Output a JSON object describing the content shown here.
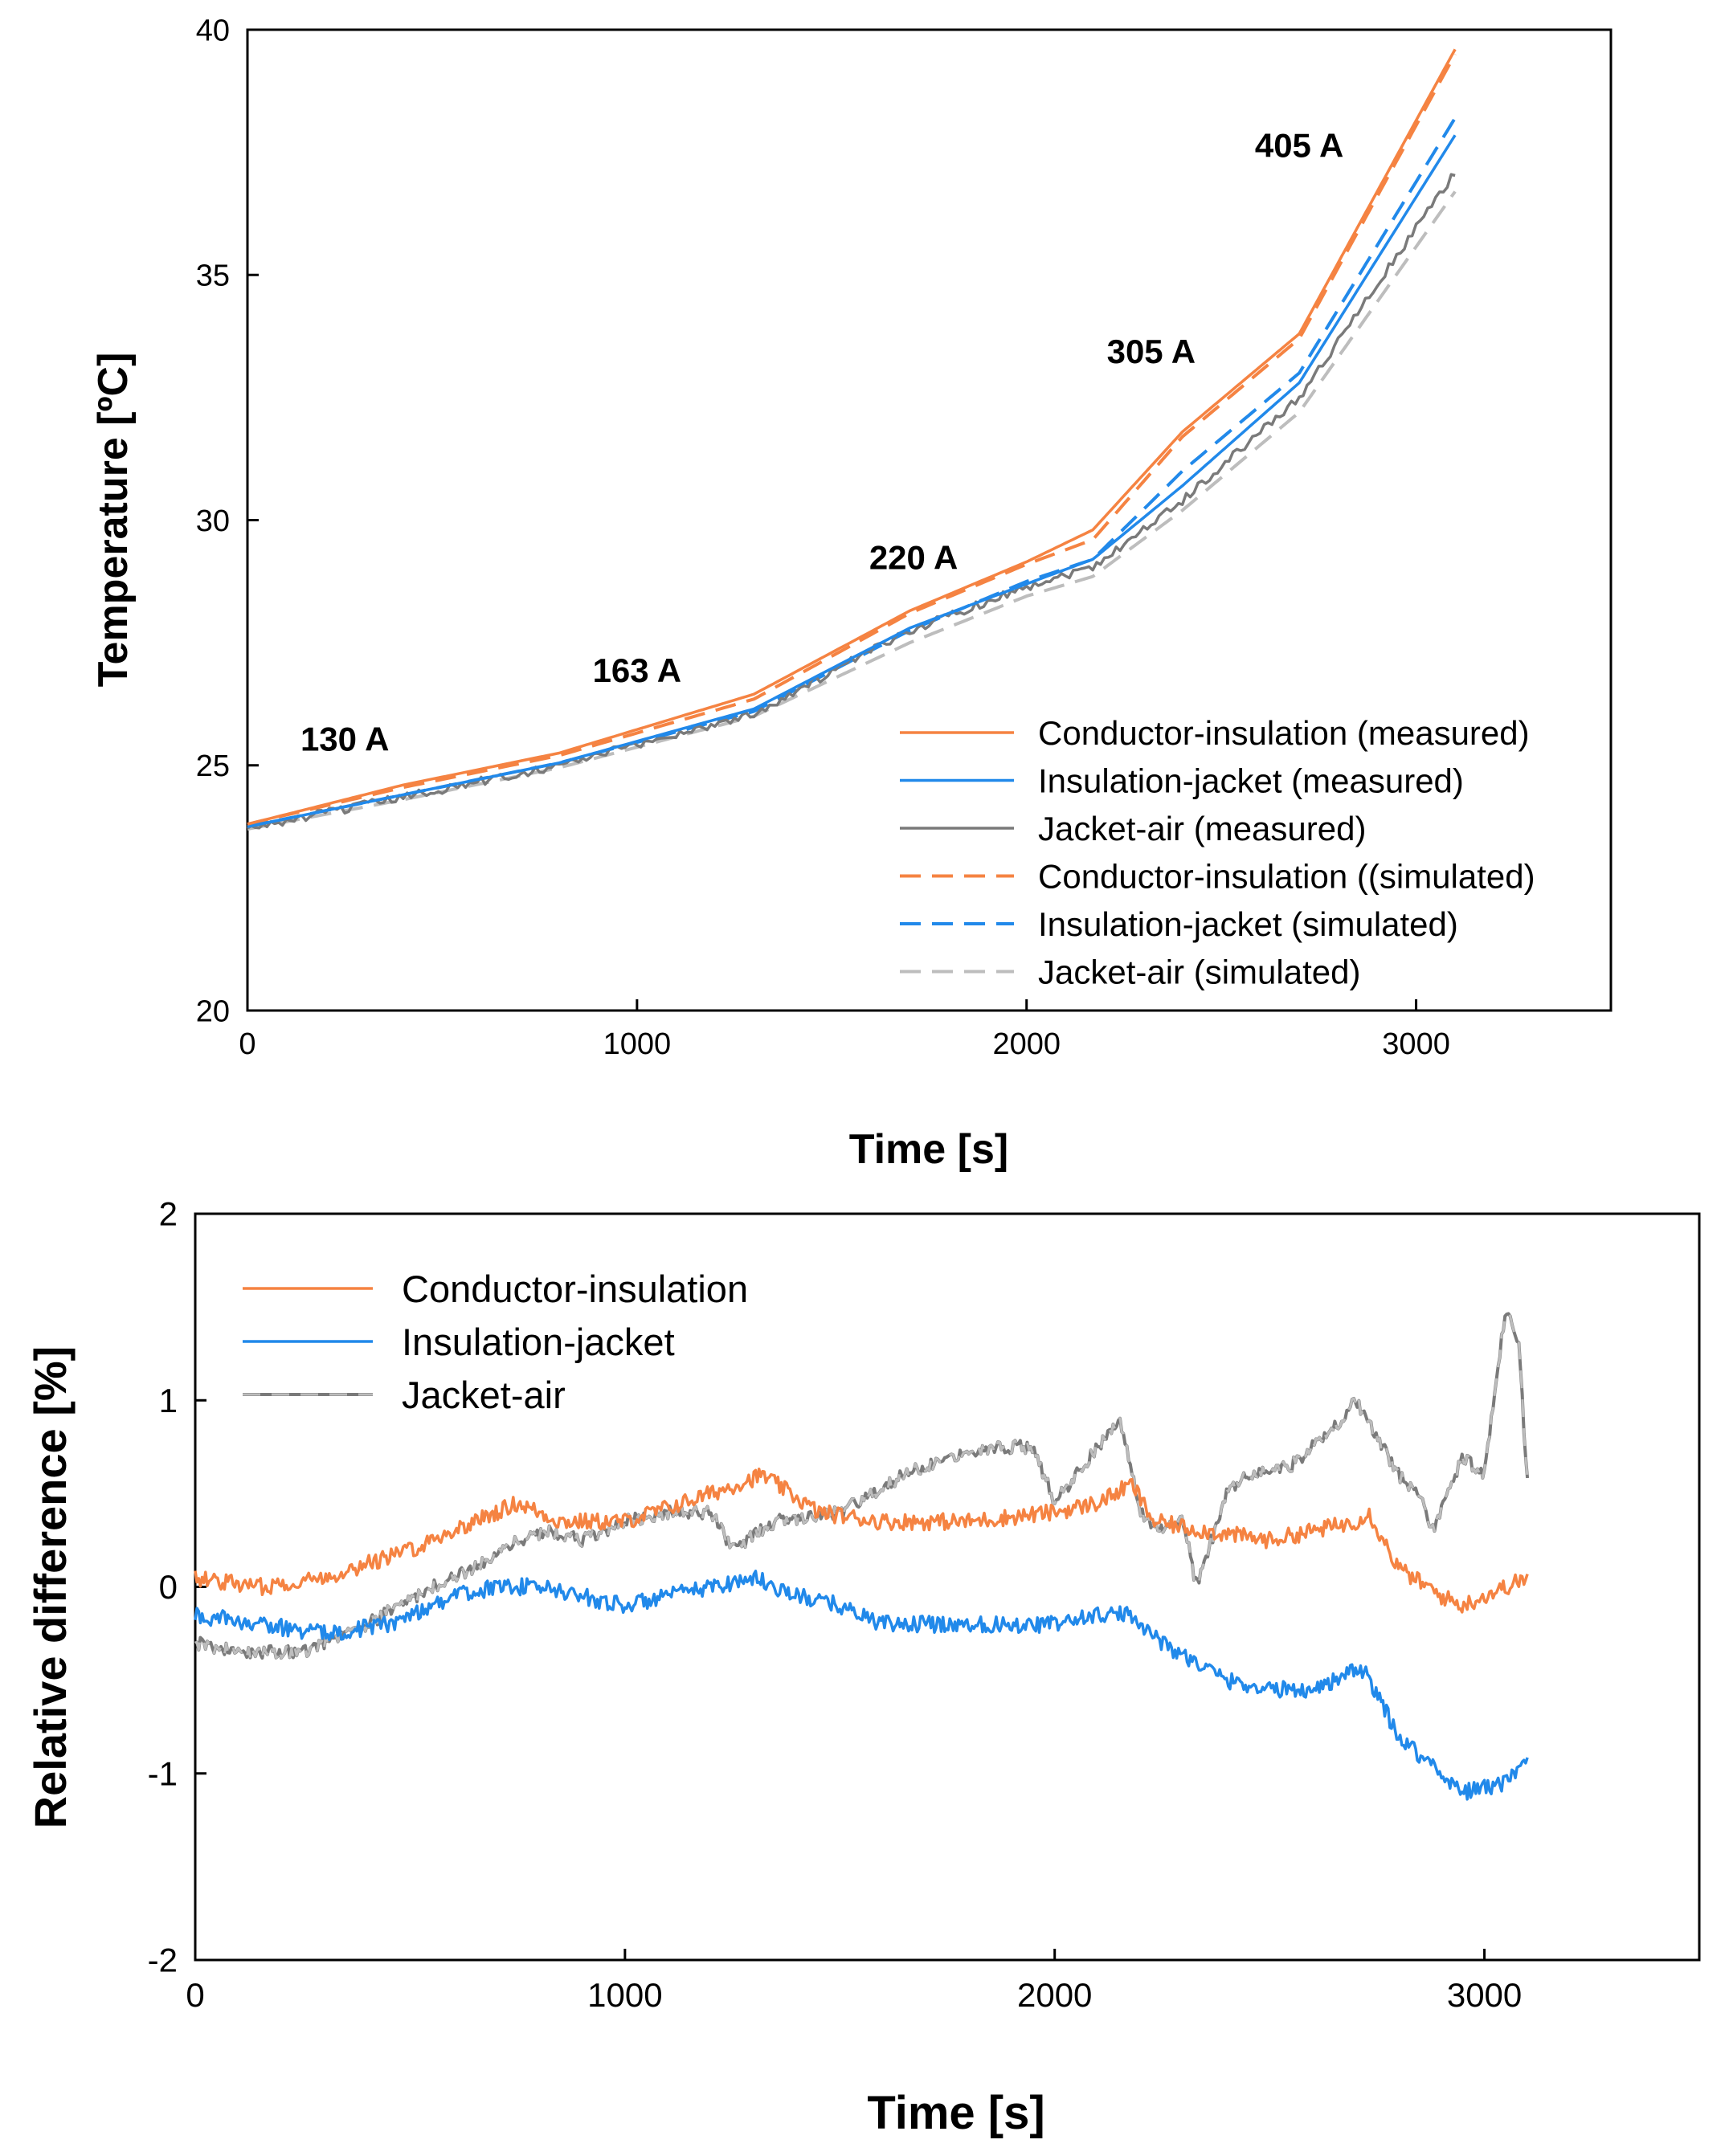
{
  "colors": {
    "orange": "#F58342",
    "blue": "#2189EA",
    "gray_measured": "#7A7A7A",
    "gray_simulated": "#BDBDBD"
  },
  "chart_data": [
    {
      "type": "line",
      "xlabel": "Time [s]",
      "ylabel": "Temperature [ºC]",
      "xlim": [
        0,
        3500
      ],
      "ylim": [
        20,
        40
      ],
      "xticks": [
        "0",
        "1000",
        "2000",
        "3000"
      ],
      "yticks": [
        "20",
        "25",
        "30",
        "35",
        "40"
      ],
      "legend_position": "bottom-right",
      "annotations": [
        {
          "text": "130 A",
          "x": 250,
          "y": 25.3
        },
        {
          "text": "163 A",
          "x": 1000,
          "y": 26.7
        },
        {
          "text": "220 A",
          "x": 1710,
          "y": 29.0
        },
        {
          "text": "305 A",
          "x": 2320,
          "y": 33.2
        },
        {
          "text": "405 A",
          "x": 2700,
          "y": 37.4
        }
      ],
      "series": [
        {
          "name": "Conductor-insulation (measured)",
          "style": "solid",
          "color": "orange",
          "x": [
            0,
            400,
            800,
            1300,
            1700,
            2000,
            2170,
            2400,
            2700,
            3100
          ],
          "y": [
            23.8,
            24.6,
            25.25,
            26.45,
            28.15,
            29.15,
            29.8,
            31.8,
            33.8,
            39.6
          ]
        },
        {
          "name": "Insulation-jacket (measured)",
          "style": "solid",
          "color": "blue",
          "x": [
            0,
            400,
            800,
            1300,
            1700,
            2000,
            2170,
            2400,
            2700,
            3100
          ],
          "y": [
            23.75,
            24.4,
            25.05,
            26.15,
            27.8,
            28.7,
            29.2,
            30.7,
            32.8,
            37.85
          ]
        },
        {
          "name": "Jacket-air (measured)",
          "style": "solid",
          "color": "gray_measured",
          "x": [
            0,
            400,
            800,
            1300,
            1700,
            2000,
            2170,
            2400,
            2700,
            3100
          ],
          "y": [
            23.7,
            24.35,
            25.0,
            26.05,
            27.75,
            28.65,
            29.05,
            30.4,
            32.5,
            37.1
          ]
        },
        {
          "name": "Conductor-insulation ((simulated)",
          "style": "dashed",
          "color": "orange",
          "x": [
            0,
            400,
            800,
            1300,
            1700,
            2000,
            2170,
            2400,
            2700,
            3100
          ],
          "y": [
            23.8,
            24.55,
            25.2,
            26.35,
            28.1,
            29.1,
            29.6,
            31.7,
            33.7,
            39.5
          ]
        },
        {
          "name": "Insulation-jacket (simulated)",
          "style": "dashed",
          "color": "blue",
          "x": [
            0,
            400,
            800,
            1300,
            1700,
            2000,
            2170,
            2400,
            2700,
            3100
          ],
          "y": [
            23.75,
            24.4,
            25.05,
            26.1,
            27.75,
            28.75,
            29.2,
            31.0,
            33.0,
            38.2
          ]
        },
        {
          "name": "Jacket-air (simulated)",
          "style": "dashed",
          "color": "gray_simulated",
          "x": [
            0,
            400,
            800,
            1300,
            1700,
            2000,
            2170,
            2400,
            2700,
            3100
          ],
          "y": [
            23.7,
            24.3,
            24.95,
            26.0,
            27.5,
            28.45,
            28.85,
            30.2,
            32.2,
            36.7
          ]
        }
      ]
    },
    {
      "type": "line",
      "xlabel": "Time [s]",
      "ylabel": "Relative difference [%]",
      "xlim": [
        0,
        3500
      ],
      "ylim": [
        -2,
        2
      ],
      "xticks": [
        "0",
        "1000",
        "2000",
        "3000"
      ],
      "yticks": [
        "-2",
        "-1",
        "0",
        "1",
        "2"
      ],
      "legend_position": "top-left",
      "series": [
        {
          "name": "Conductor-insulation",
          "style": "solid",
          "color": "orange",
          "x": [
            0,
            150,
            300,
            500,
            650,
            750,
            850,
            1000,
            1200,
            1320,
            1450,
            1600,
            1800,
            2000,
            2100,
            2180,
            2230,
            2350,
            2500,
            2600,
            2700,
            2730,
            2800,
            2900,
            2950,
            3050,
            3100
          ],
          "y": [
            0.05,
            0.0,
            0.05,
            0.2,
            0.35,
            0.45,
            0.35,
            0.35,
            0.5,
            0.6,
            0.4,
            0.35,
            0.35,
            0.4,
            0.45,
            0.55,
            0.35,
            0.3,
            0.25,
            0.3,
            0.35,
            0.4,
            0.1,
            -0.05,
            -0.1,
            0.0,
            0.05
          ]
        },
        {
          "name": "Insulation-jacket",
          "style": "solid",
          "color": "blue",
          "x": [
            0,
            150,
            300,
            450,
            600,
            700,
            800,
            900,
            1000,
            1100,
            1300,
            1400,
            1500,
            1600,
            1800,
            2000,
            2100,
            2180,
            2250,
            2400,
            2500,
            2600,
            2700,
            2720,
            2800,
            2900,
            2950,
            3050,
            3100
          ],
          "y": [
            -0.15,
            -0.2,
            -0.25,
            -0.2,
            -0.05,
            0.0,
            0.0,
            -0.05,
            -0.1,
            -0.05,
            0.05,
            -0.05,
            -0.1,
            -0.2,
            -0.2,
            -0.2,
            -0.15,
            -0.15,
            -0.3,
            -0.5,
            -0.55,
            -0.55,
            -0.45,
            -0.45,
            -0.8,
            -1.0,
            -1.1,
            -1.05,
            -0.95
          ]
        },
        {
          "name": "Jacket-air",
          "style": "dash-overlay",
          "color": "gray_measured",
          "x": [
            0,
            100,
            250,
            400,
            550,
            650,
            750,
            820,
            900,
            1000,
            1100,
            1200,
            1250,
            1350,
            1500,
            1650,
            1750,
            1850,
            1950,
            2000,
            2100,
            2150,
            2200,
            2250,
            2300,
            2330,
            2400,
            2450,
            2550,
            2650,
            2700,
            2750,
            2800,
            2850,
            2880,
            2950,
            3000,
            3050,
            3080,
            3100
          ],
          "y": [
            -0.3,
            -0.35,
            -0.35,
            -0.2,
            0.0,
            0.1,
            0.25,
            0.3,
            0.25,
            0.35,
            0.4,
            0.4,
            0.2,
            0.35,
            0.4,
            0.6,
            0.7,
            0.75,
            0.75,
            0.45,
            0.75,
            0.9,
            0.4,
            0.3,
            0.35,
            0.0,
            0.5,
            0.6,
            0.65,
            0.85,
            1.0,
            0.8,
            0.6,
            0.5,
            0.3,
            0.7,
            0.6,
            1.5,
            1.3,
            0.55
          ]
        }
      ]
    }
  ]
}
